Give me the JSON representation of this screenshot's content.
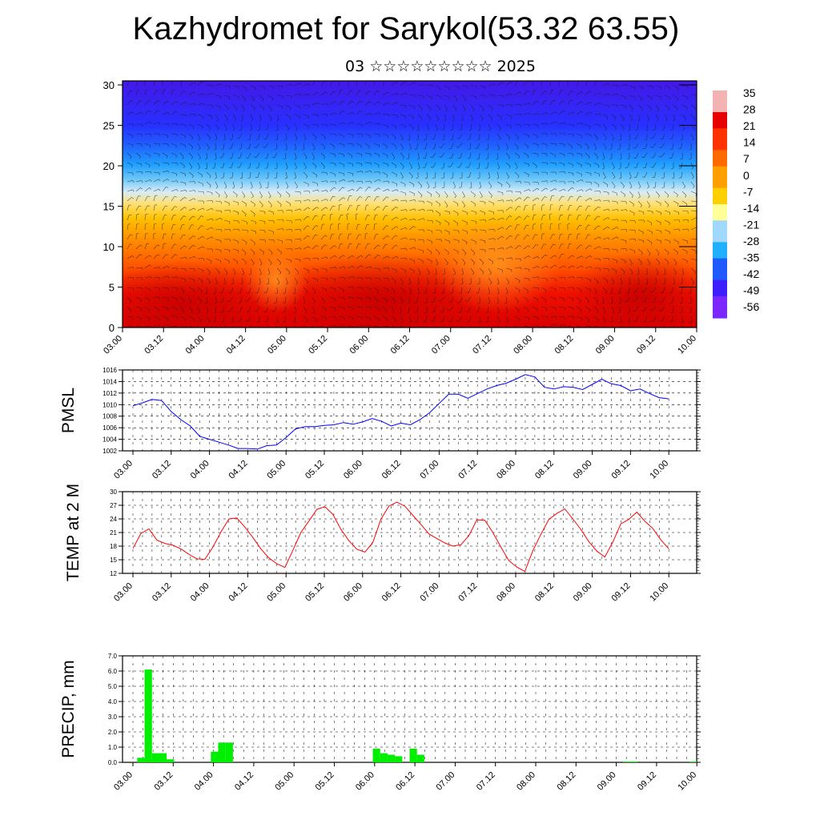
{
  "header": {
    "title": "Kazhydromet for Sarykol(53.32 63.55)",
    "subtitle": "03 ☆☆☆☆☆☆☆☆☆ 2025"
  },
  "colors": {
    "pmsl_line": "#0000ff",
    "temp_line": "#ff0000",
    "precip_bar": "#00ee00",
    "colorbar": [
      "#f4b3b3",
      "#e60000",
      "#ff3300",
      "#ff6a00",
      "#ffa000",
      "#ffd000",
      "#ffff99",
      "#a0d8ff",
      "#20b0ff",
      "#1e5aff",
      "#3c1eff",
      "#7a28ff"
    ]
  },
  "chart_data": [
    {
      "type": "heatmap",
      "description_visible": "cross-section temperature with wind barbs",
      "x_ticks": [
        "03.00",
        "03.12",
        "04.00",
        "04.12",
        "05.00",
        "05.12",
        "06.00",
        "06.12",
        "07.00",
        "07.12",
        "08.00",
        "08.12",
        "09.00",
        "09.12",
        "10.00"
      ],
      "y_ticks": [
        "0",
        "5",
        "10",
        "15",
        "20",
        "25",
        "30"
      ],
      "ylim": [
        0,
        30.5
      ],
      "colorbar_labels": [
        "35",
        "28",
        "21",
        "14",
        "7",
        "0",
        "-7",
        "-14",
        "-21",
        "-28",
        "-35",
        "-42",
        "-49",
        "-56"
      ]
    },
    {
      "type": "line",
      "ylabel": "PMSL",
      "x_ticks": [
        "03.00",
        "03.12",
        "04.00",
        "04.12",
        "05.00",
        "05.12",
        "06.00",
        "06.12",
        "07.00",
        "07.12",
        "08.00",
        "08.12",
        "09.00",
        "09.12",
        "10.00"
      ],
      "y_ticks": [
        "1002",
        "1004",
        "1006",
        "1008",
        "1010",
        "1012",
        "1014",
        "1016"
      ],
      "ylim": [
        1002,
        1016
      ],
      "series": [
        {
          "values": [
            1009.8,
            1010.3,
            1010.9,
            1010.7,
            1008.8,
            1007.4,
            1006.3,
            1004.5,
            1004.0,
            1003.5,
            1003.0,
            1002.4,
            1002.4,
            1002.3,
            1002.9,
            1003.0,
            1004.3,
            1005.8,
            1006.2,
            1006.2,
            1006.4,
            1006.5,
            1006.9,
            1006.6,
            1007.0,
            1007.6,
            1007.1,
            1006.3,
            1006.8,
            1006.5,
            1007.4,
            1008.6,
            1010.2,
            1011.8,
            1011.8,
            1011.1,
            1011.9,
            1012.7,
            1013.3,
            1013.7,
            1014.4,
            1015.2,
            1014.8,
            1013.0,
            1012.7,
            1013.1,
            1013.0,
            1012.6,
            1013.5,
            1014.4,
            1013.6,
            1013.3,
            1012.4,
            1012.7,
            1011.9,
            1011.2,
            1011.0
          ]
        }
      ]
    },
    {
      "type": "line",
      "ylabel": "TEMP at 2 M",
      "x_ticks": [
        "03.00",
        "03.12",
        "04.00",
        "04.12",
        "05.00",
        "05.12",
        "06.00",
        "06.12",
        "07.00",
        "07.12",
        "08.00",
        "08.12",
        "09.00",
        "09.12",
        "10.00"
      ],
      "y_ticks": [
        "12",
        "15",
        "18",
        "21",
        "24",
        "27",
        "30"
      ],
      "ylim": [
        12,
        30
      ],
      "series": [
        {
          "values": [
            17.5,
            20.8,
            21.8,
            19.3,
            18.6,
            18.2,
            17.4,
            16.2,
            15.2,
            15.1,
            17.8,
            21.1,
            24.0,
            24.2,
            22.2,
            19.9,
            17.4,
            15.4,
            14.1,
            13.3,
            17.1,
            21.0,
            23.5,
            26.1,
            26.7,
            25.0,
            21.7,
            19.2,
            17.3,
            16.7,
            18.8,
            23.9,
            26.8,
            27.7,
            26.8,
            24.8,
            22.8,
            20.7,
            19.7,
            18.7,
            18.0,
            18.3,
            20.3,
            23.8,
            23.7,
            21.0,
            17.8,
            14.8,
            13.4,
            12.4,
            17.0,
            20.6,
            23.9,
            25.2,
            26.2,
            24.0,
            21.7,
            19.0,
            16.9,
            15.6,
            18.9,
            22.9,
            23.9,
            25.5,
            23.5,
            21.9,
            19.4,
            17.4
          ]
        }
      ]
    },
    {
      "type": "bar",
      "ylabel": "PRECIP, mm",
      "x_ticks": [
        "03.00",
        "03.12",
        "04.00",
        "04.12",
        "05.00",
        "05.12",
        "06.00",
        "06.12",
        "07.00",
        "07.12",
        "08.00",
        "08.12",
        "09.00",
        "09.12",
        "10.00"
      ],
      "y_ticks": [
        "0.0",
        "1.0",
        "2.0",
        "3.0",
        "4.0",
        "5.0",
        "6.0",
        "7.0"
      ],
      "ylim": [
        0,
        7
      ],
      "series": [
        {
          "values": [
            0,
            0,
            0.3,
            6.1,
            0.6,
            0.6,
            0.2,
            0,
            0,
            0,
            0,
            0,
            0.7,
            1.3,
            1.3,
            0,
            0,
            0,
            0,
            0,
            0,
            0,
            0,
            0,
            0,
            0,
            0,
            0,
            0,
            0,
            0,
            0,
            0,
            0,
            0.9,
            0.6,
            0.5,
            0.4,
            0,
            0.9,
            0.5,
            0,
            0,
            0,
            0,
            0,
            0,
            0,
            0,
            0,
            0,
            0,
            0,
            0,
            0,
            0,
            0,
            0,
            0,
            0,
            0,
            0,
            0,
            0,
            0,
            0,
            0,
            0,
            0.05,
            0.05,
            0,
            0,
            0,
            0,
            0,
            0,
            0,
            0.05
          ]
        }
      ]
    }
  ]
}
